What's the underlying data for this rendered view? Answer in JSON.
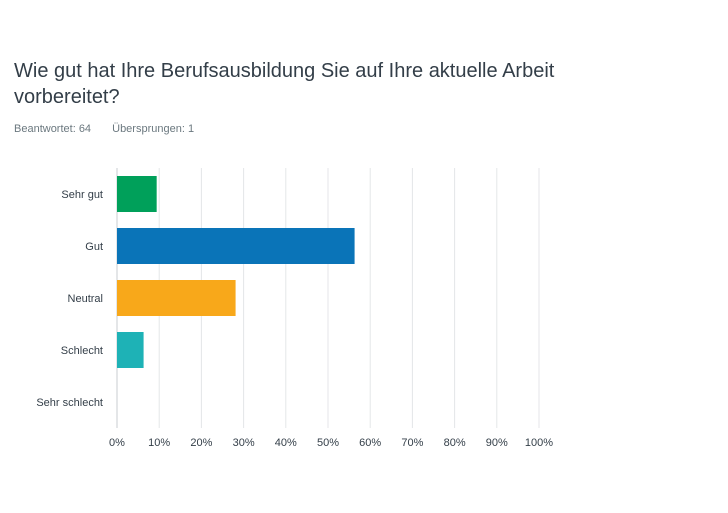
{
  "question": {
    "title": "Wie gut hat Ihre Berufsausbildung Sie auf Ihre aktuelle Arbeit vorbereitet?"
  },
  "stats": {
    "answered": "Beantwortet: 64",
    "skipped": "Übersprungen: 1"
  },
  "chart_data": {
    "type": "bar",
    "orientation": "horizontal",
    "categories": [
      "Sehr gut",
      "Gut",
      "Neutral",
      "Schlecht",
      "Sehr schlecht"
    ],
    "values": [
      9.4,
      56.3,
      28.1,
      6.3,
      0
    ],
    "unit": "%",
    "colors": [
      "#00a05a",
      "#0a74b8",
      "#f8a81a",
      "#1eb2b6",
      "#9d6dbb"
    ],
    "x_ticks": [
      "0%",
      "10%",
      "20%",
      "30%",
      "40%",
      "50%",
      "60%",
      "70%",
      "80%",
      "90%",
      "100%"
    ],
    "xlim": [
      0,
      100
    ],
    "grid": true,
    "title": "",
    "xlabel": "",
    "ylabel": ""
  }
}
